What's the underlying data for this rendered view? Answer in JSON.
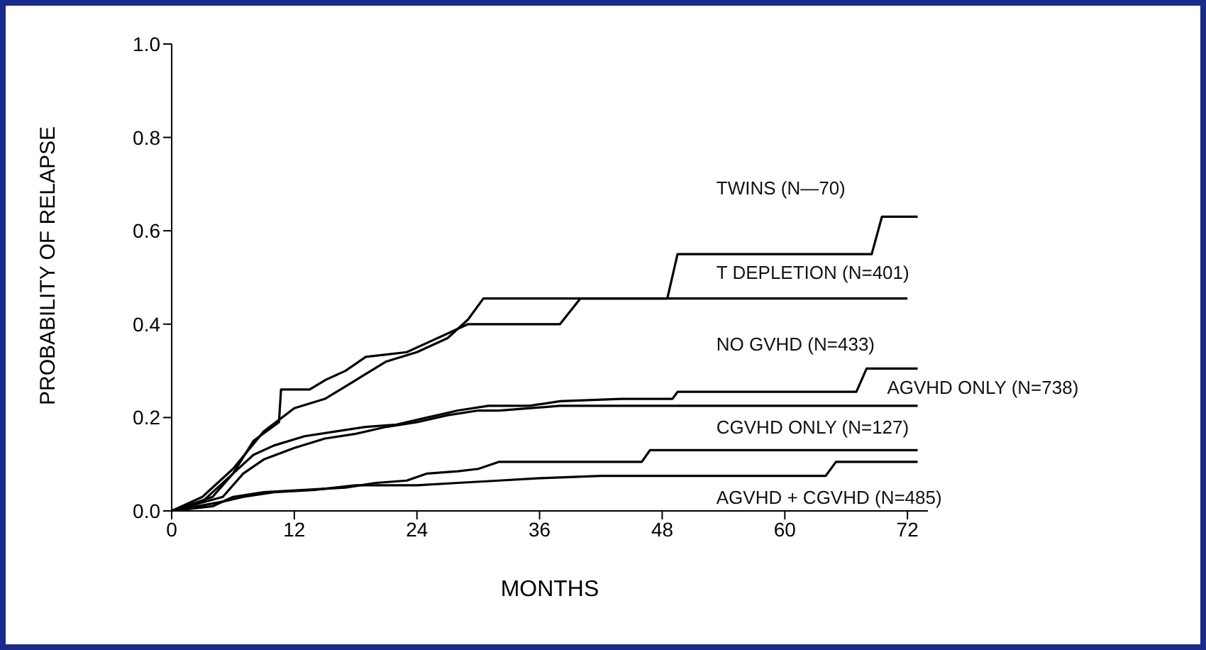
{
  "chart_data": {
    "type": "line",
    "xlabel": "MONTHS",
    "ylabel": "PROBABILITY OF RELAPSE",
    "xlim": [
      0,
      74
    ],
    "xticks": [
      0,
      12,
      24,
      36,
      48,
      60,
      72
    ],
    "ylim": [
      0,
      1
    ],
    "yticks": [
      {
        "value": 0,
        "label": "0.0"
      },
      {
        "value": 0.2,
        "label": "0.2"
      },
      {
        "value": 0.4,
        "label": "0.4"
      },
      {
        "value": 0.6,
        "label": "0.6"
      },
      {
        "value": 0.8,
        "label": "0.8"
      },
      {
        "value": 1,
        "label": "1.0"
      }
    ],
    "marker": "none",
    "series": [
      {
        "name": "TWINS (N—70)",
        "color": "#000000",
        "x": [
          0,
          3,
          6,
          8,
          10.5,
          10.7,
          13.5,
          15,
          17,
          19,
          21,
          23,
          25,
          27,
          29,
          38,
          40,
          48.5,
          49.5,
          68.5,
          69.5,
          73
        ],
        "values": [
          0,
          0.02,
          0.08,
          0.15,
          0.19,
          0.26,
          0.26,
          0.28,
          0.3,
          0.33,
          0.335,
          0.34,
          0.36,
          0.38,
          0.4,
          0.4,
          0.455,
          0.455,
          0.55,
          0.55,
          0.63,
          0.63
        ]
      },
      {
        "name": "T DEPLETION (N=401)",
        "color": "#000000",
        "x": [
          0,
          3,
          6,
          9,
          12,
          15,
          18,
          21,
          24,
          27,
          29,
          30.5,
          72
        ],
        "values": [
          0,
          0.03,
          0.09,
          0.17,
          0.22,
          0.24,
          0.28,
          0.32,
          0.34,
          0.37,
          0.41,
          0.455,
          0.455
        ]
      },
      {
        "name": "NO GVHD (N=433)",
        "color": "#000000",
        "x": [
          0,
          4,
          6,
          8,
          10,
          13,
          16,
          19,
          22,
          25,
          28,
          31,
          35,
          38,
          44,
          49,
          49.5,
          67,
          68,
          73
        ],
        "values": [
          0,
          0.03,
          0.08,
          0.12,
          0.14,
          0.16,
          0.17,
          0.18,
          0.185,
          0.2,
          0.215,
          0.225,
          0.225,
          0.235,
          0.24,
          0.24,
          0.255,
          0.255,
          0.305,
          0.305
        ]
      },
      {
        "name": "AGVHD ONLY (N=738)",
        "color": "#000000",
        "x": [
          0,
          5,
          7,
          9,
          12,
          15,
          18,
          21,
          24,
          27,
          30,
          32,
          38,
          73
        ],
        "values": [
          0,
          0.03,
          0.08,
          0.11,
          0.135,
          0.155,
          0.165,
          0.18,
          0.19,
          0.205,
          0.215,
          0.215,
          0.225,
          0.225
        ]
      },
      {
        "name": "CGVHD ONLY (N=127)",
        "color": "#000000",
        "x": [
          0,
          4,
          6,
          9,
          13,
          17,
          20,
          23,
          25,
          28,
          30,
          32,
          46,
          46.8,
          73
        ],
        "values": [
          0,
          0.01,
          0.03,
          0.04,
          0.045,
          0.05,
          0.06,
          0.065,
          0.08,
          0.085,
          0.09,
          0.105,
          0.105,
          0.13,
          0.13
        ]
      },
      {
        "name": "AGVHD + CGVHD (N=485)",
        "color": "#000000",
        "x": [
          0,
          5,
          7,
          10,
          14,
          18,
          24,
          28,
          32,
          36,
          42,
          64,
          65,
          73
        ],
        "values": [
          0,
          0.02,
          0.03,
          0.04,
          0.045,
          0.055,
          0.055,
          0.06,
          0.065,
          0.07,
          0.075,
          0.075,
          0.105,
          0.105
        ]
      }
    ]
  }
}
